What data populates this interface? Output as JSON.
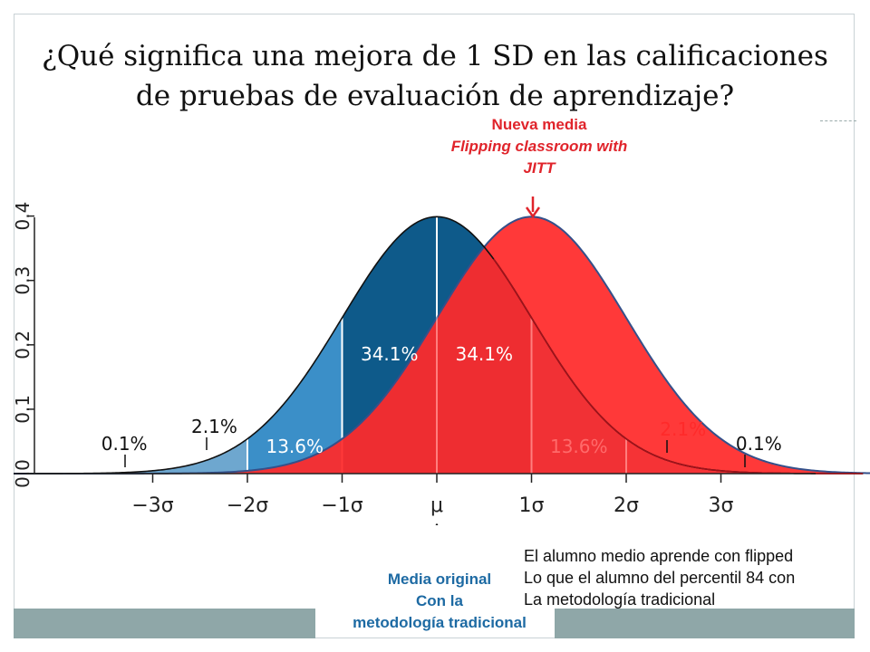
{
  "title": {
    "line1": "¿Qué significa una mejora de  1 SD en las calificaciones",
    "line2": "de pruebas de evaluación de aprendizaje?"
  },
  "new_mean": {
    "label": "Nueva media",
    "subtitle_1": "Flipping classroom with",
    "subtitle_2": "JITT",
    "color": "#e0242b"
  },
  "original_mean": {
    "label": "Media original",
    "subtitle_1": "Con la",
    "subtitle_2": "metodología tradicional",
    "color": "#1d6aa3"
  },
  "note": {
    "line1": "El alumno medio aprende con flipped",
    "line2": "Lo que el alumno  del percentil 84 con",
    "line3": "La metodología tradicional"
  },
  "chart_data": {
    "type": "area",
    "series": [
      {
        "name": "",
        "mean": 0,
        "sd": 1,
        "color": "#0e5a8a"
      },
      {
        "name": "",
        "mean": 1,
        "sd": 1,
        "color": "#ff2a2a"
      }
    ],
    "x_ticks": [
      "−3σ",
      "−2σ",
      "−1σ",
      "μ",
      "1σ",
      "2σ",
      "3σ"
    ],
    "y_ticks": [
      "0.0",
      "0.1",
      "0.2",
      "0.3",
      "0.4"
    ],
    "ylim": [
      0,
      0.4
    ],
    "xlim": [
      -4.5,
      4.5
    ],
    "region_labels": [
      {
        "text": "0.1%",
        "x": -3.3
      },
      {
        "text": "2.1%",
        "x": -2.35
      },
      {
        "text": "13.6%",
        "x": -1.5
      },
      {
        "text": "34.1%",
        "x": -0.5
      },
      {
        "text": "34.1%",
        "x": 0.5
      },
      {
        "text": "13.6%",
        "x": 1.5
      },
      {
        "text": "2.1%",
        "x": 2.6
      },
      {
        "text": "0.1%",
        "x": 3.4
      }
    ]
  }
}
